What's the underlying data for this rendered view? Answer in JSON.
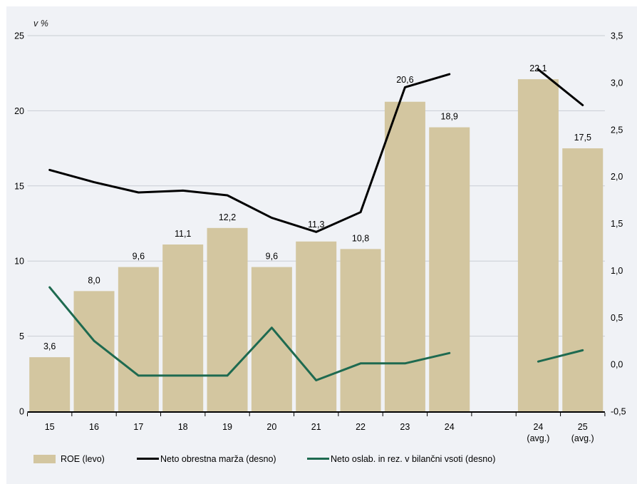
{
  "page": {
    "background_color": "#f0f2f6",
    "edge_color": "#ffffff"
  },
  "chart_data": {
    "type": "bar",
    "subtype": "bar+line dual-axis combo",
    "axis_unit_label": "v %",
    "grid": "horizontal gridlines on left-axis ticks",
    "legend_position": "bottom",
    "left_axis": {
      "range": [
        0,
        25
      ],
      "tick_labels": [
        "0",
        "5",
        "10",
        "15",
        "20",
        "25"
      ]
    },
    "right_axis": {
      "range": [
        -0.5,
        3.5
      ],
      "tick_labels": [
        "-0,5",
        "0,0",
        "0,5",
        "1,0",
        "1,5",
        "2,0",
        "2,5",
        "3,0",
        "3,5"
      ]
    },
    "categories": [
      "15",
      "16",
      "17",
      "18",
      "19",
      "20",
      "21",
      "22",
      "23",
      "24",
      "",
      "24 (avg.)",
      "25 (avg.)"
    ],
    "bar_series": {
      "name": "ROE (levo)",
      "axis": "left",
      "color": "#d3c6a0",
      "values": [
        3.6,
        8.0,
        9.6,
        11.1,
        12.2,
        9.6,
        11.3,
        10.8,
        20.6,
        18.9,
        null,
        22.1,
        17.5
      ],
      "value_labels": [
        "3,6",
        "8,0",
        "9,6",
        "11,1",
        "12,2",
        "9,6",
        "11,3",
        "10,8",
        "20,6",
        "18,9",
        null,
        "22,1",
        "17,5"
      ]
    },
    "line_series": [
      {
        "name": "Neto obrestna marža (desno)",
        "axis": "right",
        "color": "#000000",
        "values": [
          2.07,
          1.94,
          1.83,
          1.85,
          1.8,
          1.56,
          1.41,
          1.62,
          2.95,
          3.09,
          null,
          3.14,
          2.76
        ]
      },
      {
        "name": "Neto oslab. in rez. v bilančni vsoti (desno)",
        "axis": "right",
        "color": "#1e6a50",
        "values": [
          0.82,
          0.25,
          -0.12,
          -0.12,
          -0.12,
          0.39,
          -0.17,
          0.01,
          0.01,
          0.12,
          null,
          0.03,
          0.15
        ]
      }
    ],
    "legend": [
      {
        "label": "ROE (levo)",
        "swatch": "bar",
        "color": "#d3c6a0"
      },
      {
        "label": "Neto obrestna marža (desno)",
        "swatch": "line",
        "color": "#000000"
      },
      {
        "label": "Neto oslab. in rez. v bilančni vsoti (desno)",
        "swatch": "line",
        "color": "#1e6a50"
      }
    ]
  }
}
